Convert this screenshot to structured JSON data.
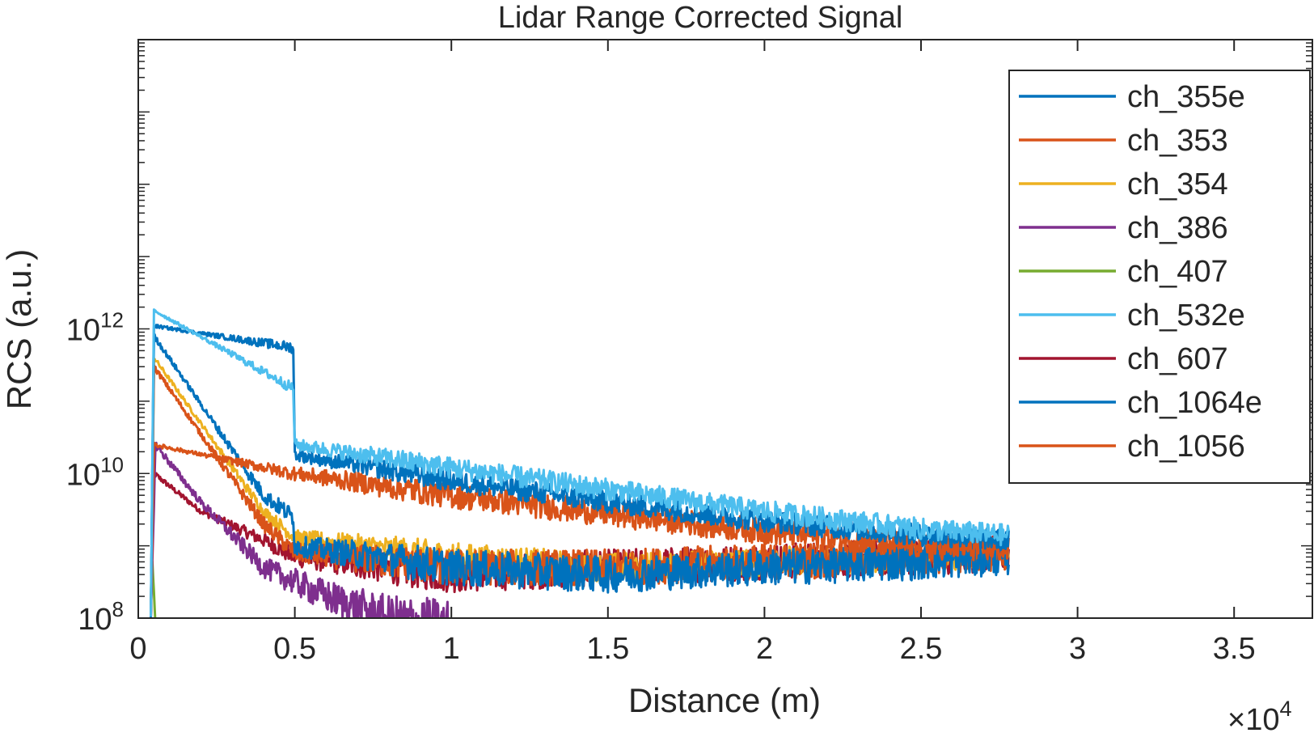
{
  "chart_data": {
    "type": "line",
    "title": "Lidar Range Corrected Signal",
    "xlabel": "Distance (m)",
    "ylabel": "RCS (a.u.)",
    "x_scale": "linear",
    "x_multiplier_label": "×10",
    "x_multiplier_exponent": "4",
    "x_tick_labels": [
      "0",
      "0.5",
      "1",
      "1.5",
      "2",
      "2.5",
      "3",
      "3.5"
    ],
    "x_ticks": [
      0,
      5000,
      10000,
      15000,
      20000,
      25000,
      30000,
      35000
    ],
    "xlim": [
      0,
      37500
    ],
    "y_scale": "log",
    "y_tick_base": "10",
    "y_tick_exponents": [
      "8",
      "10",
      "12"
    ],
    "ylim": [
      100000000.0,
      1e+16
    ],
    "grid": false,
    "legend_position": "top-right",
    "series": [
      {
        "name": "ch_355e",
        "color": "#0072bd",
        "points": [
          [
            400,
            100000000.0
          ],
          [
            500,
            800000000000.0
          ],
          [
            4000,
            5000000000.0
          ],
          [
            4950,
            2500000000.0
          ],
          [
            5000,
            1000000000.0
          ],
          [
            10000,
            500000000.0
          ],
          [
            15000,
            400000000.0
          ],
          [
            20000,
            500000000.0
          ],
          [
            25000,
            600000000.0
          ],
          [
            27800,
            700000000.0
          ]
        ],
        "noise": 0.25
      },
      {
        "name": "ch_353",
        "color": "#d95319",
        "points": [
          [
            400,
            100000000.0
          ],
          [
            500,
            300000000000.0
          ],
          [
            4000,
            2000000000.0
          ],
          [
            5000,
            800000000.0
          ],
          [
            10000,
            500000000.0
          ],
          [
            15000,
            500000000.0
          ],
          [
            20000,
            600000000.0
          ],
          [
            25000,
            700000000.0
          ],
          [
            27800,
            800000000.0
          ]
        ],
        "noise": 0.25
      },
      {
        "name": "ch_354",
        "color": "#edb120",
        "points": [
          [
            400,
            100000000.0
          ],
          [
            500,
            400000000000.0
          ],
          [
            4000,
            3000000000.0
          ],
          [
            5000,
            1300000000.0
          ],
          [
            10000,
            700000000.0
          ],
          [
            15000,
            500000000.0
          ],
          [
            20000,
            600000000.0
          ],
          [
            25000,
            700000000.0
          ],
          [
            27800,
            800000000.0
          ]
        ],
        "noise": 0.2
      },
      {
        "name": "ch_386",
        "color": "#7e2f8e",
        "points": [
          [
            400,
            100000000.0
          ],
          [
            550,
            25000000000.0
          ],
          [
            2000,
            4000000000.0
          ],
          [
            4000,
            500000000.0
          ],
          [
            6000,
            200000000.0
          ],
          [
            8000,
            100000000.0
          ],
          [
            10000,
            80000000.0
          ]
        ],
        "noise": 0.35
      },
      {
        "name": "ch_407",
        "color": "#77ac30",
        "points": [
          [
            450,
            600000000.0
          ],
          [
            550,
            80000000.0
          ]
        ],
        "noise": 0.1
      },
      {
        "name": "ch_532e",
        "color": "#4dbeee",
        "points": [
          [
            400,
            100000000.0
          ],
          [
            500,
            1800000000000.0
          ],
          [
            4950,
            150000000000.0
          ],
          [
            5000,
            25000000000.0
          ],
          [
            10000,
            12000000000.0
          ],
          [
            15000,
            6000000000.0
          ],
          [
            20000,
            3000000000.0
          ],
          [
            25000,
            1700000000.0
          ],
          [
            27800,
            1400000000.0
          ]
        ],
        "noise": 0.15
      },
      {
        "name": "ch_607",
        "color": "#a2142f",
        "points": [
          [
            400,
            100000000.0
          ],
          [
            500,
            10000000000.0
          ],
          [
            2000,
            3000000000.0
          ],
          [
            4000,
            1200000000.0
          ],
          [
            5000,
            700000000.0
          ],
          [
            8000,
            500000000.0
          ],
          [
            10000,
            400000000.0
          ],
          [
            15000,
            500000000.0
          ],
          [
            20000,
            600000000.0
          ],
          [
            25000,
            700000000.0
          ],
          [
            27800,
            800000000.0
          ]
        ],
        "noise": 0.25
      },
      {
        "name": "ch_1064e",
        "color": "#0072bd",
        "points": [
          [
            400,
            100000000.0
          ],
          [
            500,
            1100000000000.0
          ],
          [
            4950,
            550000000000.0
          ],
          [
            5000,
            18000000000.0
          ],
          [
            10000,
            8000000000.0
          ],
          [
            15000,
            4000000000.0
          ],
          [
            20000,
            2200000000.0
          ],
          [
            25000,
            1400000000.0
          ],
          [
            27800,
            1200000000.0
          ]
        ],
        "noise": 0.15
      },
      {
        "name": "ch_1056",
        "color": "#d95319",
        "points": [
          [
            400,
            100000000.0
          ],
          [
            500,
            25000000000.0
          ],
          [
            4950,
            10000000000.0
          ],
          [
            10000,
            5000000000.0
          ],
          [
            15000,
            2800000000.0
          ],
          [
            20000,
            1600000000.0
          ],
          [
            25000,
            1000000000.0
          ],
          [
            27800,
            900000000.0
          ]
        ],
        "noise": 0.18
      }
    ]
  }
}
